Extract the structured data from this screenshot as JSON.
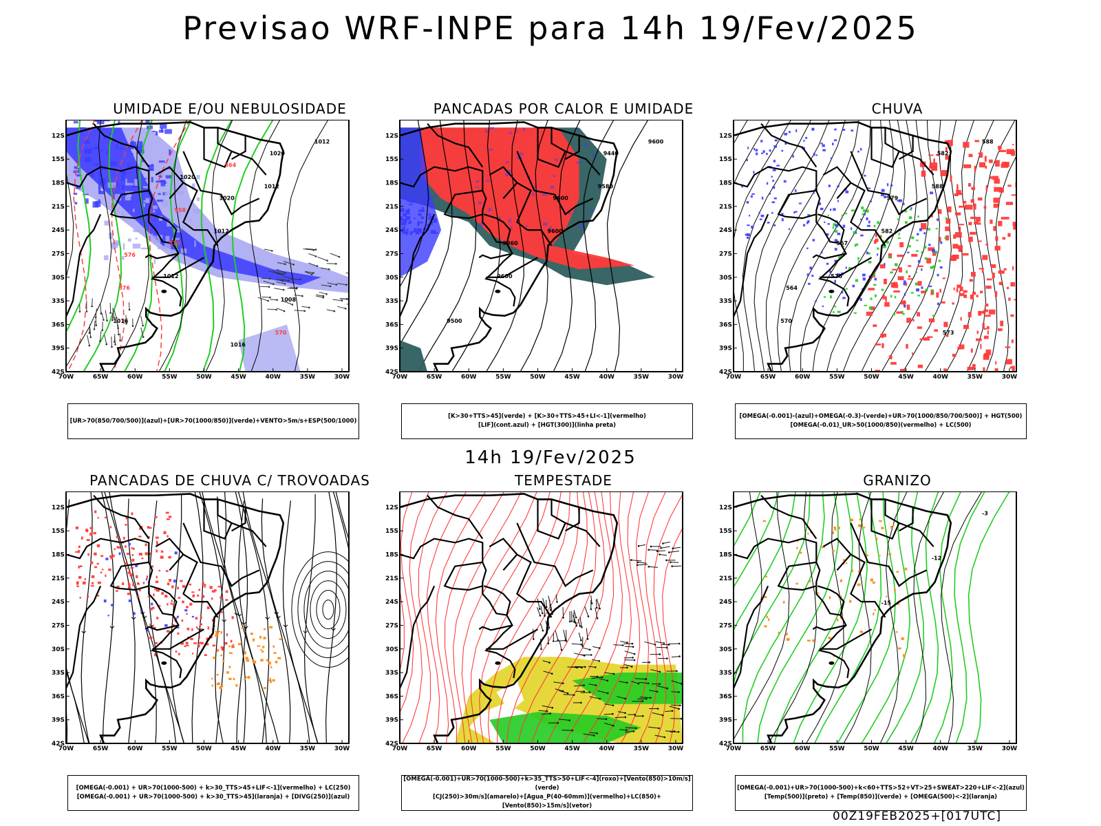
{
  "title": "Previsao WRF-INPE  para 14h 19/Fev/2025",
  "mid_time": "14h 19/Fev/2025",
  "footer": "00Z19FEB2025+[017UTC]",
  "lat_ticks": [
    "12S",
    "15S",
    "18S",
    "21S",
    "24S",
    "27S",
    "30S",
    "33S",
    "36S",
    "39S",
    "42S"
  ],
  "lon_ticks": [
    "70W",
    "65W",
    "60W",
    "55W",
    "50W",
    "45W",
    "40W",
    "35W",
    "30W"
  ],
  "panels": [
    {
      "id": "umidade",
      "title": "UMIDADE E/OU NEBULOSIDADE",
      "caption": [
        "[UR>70(850/700/500)](azul)+[UR>70(1000/850)](verde)+VENTO>5m/s+ESP(500/1000)"
      ],
      "labels": [
        "1012",
        "1012",
        "1012",
        "1012",
        "1016",
        "1020",
        "1020",
        "576",
        "576",
        "570",
        "564",
        "558",
        "576",
        "1008",
        "1016",
        "1020"
      ]
    },
    {
      "id": "pancadas_calor",
      "title": "PANCADAS POR CALOR E UMIDADE",
      "caption": [
        "[K>30+TTS>45](verde) + [K>30+TTS>45+LI<-1](vermelho)",
        "[LIF](cont.azul) + [HGT(300)](linha preta)"
      ],
      "labels": [
        "9600",
        "9580",
        "9600",
        "9600",
        "9500",
        "9440",
        "9600",
        "9360"
      ]
    },
    {
      "id": "chuva",
      "title": "CHUVA",
      "caption": [
        "[OMEGA(-0.001)-(azul)+OMEGA(-0.3)-(verde)+UR>70(1000/850/700/500)] + HGT(500)",
        "[OMEGA(-0.01)_UR>50(1000/850)(vermelho) + LC(500)"
      ],
      "labels": [
        "588",
        "588",
        "582",
        "576",
        "570",
        "582",
        "579",
        "567",
        "564",
        "573"
      ]
    },
    {
      "id": "trovoadas",
      "title": "PANCADAS DE CHUVA C/ TROVOADAS",
      "caption": [
        "[OMEGA(-0.001) + UR>70(1000-500) + k>30_TTS>45+LIF<-1](vermelho) + LC(250)",
        "[OMEGA(-0.001) + UR>70(1000-500) + k>30_TTS>45](laranja) + [DIVG(250)](azul)"
      ],
      "labels": []
    },
    {
      "id": "tempestade",
      "title": "TEMPESTADE",
      "caption": [
        "[OMEGA(-0.001)+UR>70(1000-500)+k>35_TTS>50+LIF<-4](roxo)+[Vento(850)>10m/s](verde)",
        "[CJ(250)>30m/s](amarelo)+[Agua_P(40-60mm)](vermelho)+LC(850)+[Vento(850)>15m/s](vetor)"
      ],
      "labels": []
    },
    {
      "id": "granizo",
      "title": "GRANIZO",
      "caption": [
        "[OMEGA(-0.001)+UR>70(1000-500)+k<60+TTS>52+VT>25+SWEAT>220+LIF<-2](azul)",
        "[Temp(500)](preto) + [Temp(850)](verde) + [OMEGA(500)<-2](laranja)"
      ],
      "labels": [
        "-3",
        "-12",
        "-15"
      ]
    }
  ],
  "colors": {
    "blue": "#3b3bff",
    "lightblue": "#a9a9f2",
    "green": "#22cc22",
    "red": "#ff3b3b",
    "orange": "#ff8c1a",
    "teal": "#2e5e5e",
    "yellow": "#e4d630"
  }
}
